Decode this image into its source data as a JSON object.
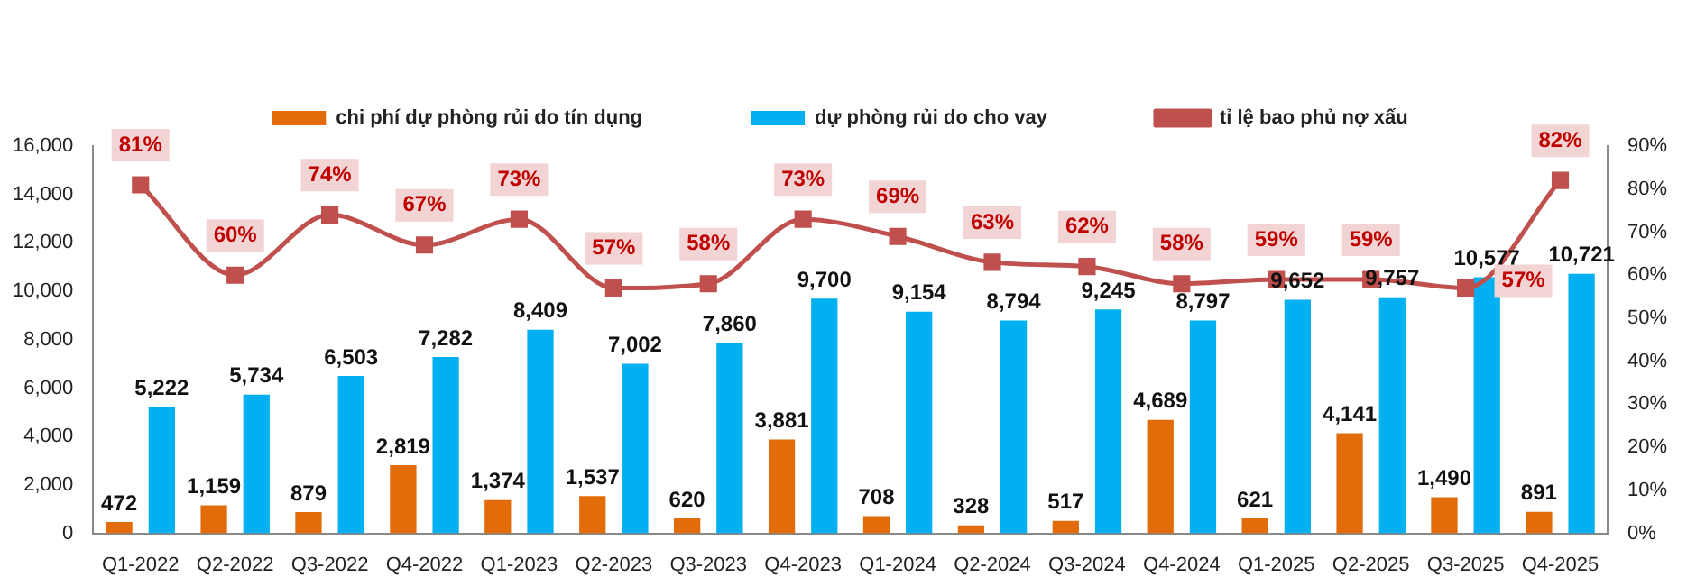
{
  "chart_data": {
    "type": "bar",
    "categories": [
      "Q1-2022",
      "Q2-2022",
      "Q3-2022",
      "Q4-2022",
      "Q1-2023",
      "Q2-2023",
      "Q3-2023",
      "Q4-2023",
      "Q1-2024",
      "Q2-2024",
      "Q3-2024",
      "Q4-2024",
      "Q1-2025",
      "Q2-2025",
      "Q3-2025",
      "Q4-2025"
    ],
    "series": [
      {
        "name": "chi phí dự phòng rủi do tín dụng",
        "color": "#e36c0a",
        "values": [
          472,
          1159,
          879,
          2819,
          1374,
          1537,
          620,
          3881,
          708,
          328,
          517,
          4689,
          621,
          4141,
          1490,
          891
        ],
        "value_labels": [
          "472",
          "1,159",
          "879",
          "2,819",
          "1,374",
          "1,537",
          "620",
          "3,881",
          "708",
          "328",
          "517",
          "4,689",
          "621",
          "4,141",
          "1,490",
          "891"
        ]
      },
      {
        "name": "dự phòng rủi do cho vay",
        "color": "#00b0f0",
        "values": [
          5222,
          5734,
          6503,
          7282,
          8409,
          7002,
          7860,
          9700,
          9154,
          8794,
          9245,
          8797,
          9652,
          9757,
          10577,
          10721
        ],
        "value_labels": [
          "5,222",
          "5,734",
          "6,503",
          "7,282",
          "8,409",
          "7,002",
          "7,860",
          "9,700",
          "9,154",
          "8,794",
          "9,245",
          "8,797",
          "9,652",
          "9,757",
          "10,577",
          "10,721"
        ]
      },
      {
        "name": "tỉ lệ bao phủ nợ xấu",
        "type": "line",
        "axis": "y2",
        "color": "#c0504d",
        "values": [
          81,
          60,
          74,
          67,
          73,
          57,
          58,
          73,
          69,
          63,
          62,
          58,
          59,
          59,
          57,
          82
        ],
        "value_labels": [
          "81%",
          "60%",
          "74%",
          "67%",
          "73%",
          "57%",
          "58%",
          "73%",
          "69%",
          "63%",
          "62%",
          "58%",
          "59%",
          "59%",
          "57%",
          "82%"
        ]
      }
    ],
    "ylim": [
      0,
      16000
    ],
    "yticks": [
      0,
      {
        "value": 2000,
        "label": "2,000"
      },
      {
        "value": 4000,
        "label": "4,000"
      },
      {
        "value": 6000,
        "label": "6,000"
      },
      {
        "value": 8000,
        "label": "8,000"
      },
      {
        "value": 10000,
        "label": "10,000"
      },
      {
        "value": 12000,
        "label": "12,000"
      },
      {
        "value": 14000,
        "label": "14,000"
      },
      {
        "value": 16000,
        "label": "16,000"
      }
    ],
    "y2lim": [
      0,
      90
    ],
    "y2ticks": [
      {
        "value": 0,
        "label": "0%"
      },
      {
        "value": 10,
        "label": "10%"
      },
      {
        "value": 20,
        "label": "20%"
      },
      {
        "value": 30,
        "label": "30%"
      },
      {
        "value": 40,
        "label": "40%"
      },
      {
        "value": 50,
        "label": "50%"
      },
      {
        "value": 60,
        "label": "60%"
      },
      {
        "value": 70,
        "label": "70%"
      },
      {
        "value": 80,
        "label": "80%"
      },
      {
        "value": 90,
        "label": "90%"
      }
    ],
    "legend": "top",
    "grid": false,
    "marker": "square",
    "line_style": "solid"
  }
}
